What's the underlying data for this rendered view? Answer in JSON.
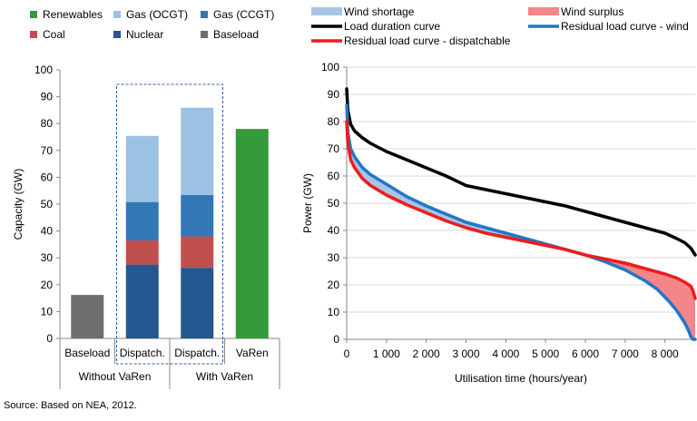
{
  "chart_data": [
    {
      "type": "bar",
      "stacked": true,
      "ylabel": "Capacity (GW)",
      "ylim": [
        0,
        100
      ],
      "yticks": [
        0,
        10,
        20,
        30,
        40,
        50,
        60,
        70,
        80,
        90,
        100
      ],
      "categories": [
        "Baseload",
        "Dispatch.",
        "Dispatch.",
        "VaRen"
      ],
      "groups": [
        {
          "label": "Without VaRen",
          "categories": [
            0,
            1
          ]
        },
        {
          "label": "With VaRen",
          "categories": [
            2,
            3
          ]
        }
      ],
      "series": [
        {
          "name": "Baseload",
          "color": "#6f6f6f",
          "values": [
            16.2,
            0,
            0,
            0
          ]
        },
        {
          "name": "Nuclear",
          "color": "#24568f",
          "values": [
            0,
            27.5,
            26.3,
            0
          ]
        },
        {
          "name": "Coal",
          "color": "#c0504d",
          "values": [
            0,
            9,
            11.7,
            0
          ]
        },
        {
          "name": "Gas (CCGT)",
          "color": "#3178b5",
          "values": [
            0,
            14.3,
            15.4,
            0
          ]
        },
        {
          "name": "Gas (OCGT)",
          "color": "#9cc2e3",
          "values": [
            0,
            24.6,
            32.5,
            0
          ]
        },
        {
          "name": "Renewables",
          "color": "#349a3a",
          "values": [
            0,
            0,
            0,
            78
          ]
        }
      ],
      "legend": {
        "rows": [
          [
            "Renewables",
            "Gas (OCGT)",
            "Gas (CCGT)"
          ],
          [
            "Coal",
            "Nuclear",
            "Baseload"
          ]
        ]
      },
      "highlight_box": {
        "categories": [
          1,
          2
        ],
        "style": "dashed",
        "color": "#2e5fa8"
      }
    },
    {
      "type": "line",
      "xlabel": "Utilisation time (hours/year)",
      "ylabel": "Power (GW)",
      "xlim": [
        0,
        8760
      ],
      "ylim": [
        0,
        100
      ],
      "xticks": [
        0,
        1000,
        2000,
        3000,
        4000,
        5000,
        6000,
        7000,
        8000
      ],
      "xtick_labels": [
        "0",
        "1 000",
        "2 000",
        "3 000",
        "4 000",
        "5 000",
        "6 000",
        "7 000",
        "8 000"
      ],
      "yticks": [
        0,
        10,
        20,
        30,
        40,
        50,
        60,
        70,
        80,
        90,
        100
      ],
      "series": [
        {
          "name": "Load duration curve",
          "color": "#000000",
          "x": [
            0,
            30,
            100,
            200,
            400,
            600,
            1000,
            1500,
            2000,
            2500,
            3000,
            3500,
            4000,
            4500,
            5000,
            5500,
            6000,
            6500,
            7000,
            7500,
            8000,
            8300,
            8500,
            8650,
            8760
          ],
          "y": [
            92,
            84,
            79,
            76.5,
            74,
            72,
            69,
            66,
            63,
            60,
            56.5,
            55,
            53.5,
            52,
            50.5,
            49,
            47,
            45,
            43,
            41,
            39,
            37,
            35.5,
            33.5,
            31
          ]
        },
        {
          "name": "Residual load curve - wind",
          "color": "#1f77c9",
          "x": [
            0,
            30,
            100,
            200,
            400,
            600,
            1000,
            1500,
            2000,
            2500,
            3000,
            3500,
            4000,
            4500,
            5000,
            5500,
            6000,
            6500,
            7000,
            7500,
            7800,
            8100,
            8300,
            8500,
            8600,
            8650,
            8700,
            8760
          ],
          "y": [
            86,
            76,
            70,
            67,
            63,
            60.5,
            57,
            52.5,
            49,
            46,
            43,
            41,
            39,
            37,
            35,
            33,
            31,
            28.5,
            25.5,
            21.5,
            18.5,
            14,
            10.5,
            6,
            3,
            1,
            0,
            0
          ]
        },
        {
          "name": "Residual load curve - dispatchable",
          "color": "#ee1c1c",
          "x": [
            0,
            30,
            100,
            200,
            400,
            600,
            1000,
            1500,
            2000,
            2500,
            3000,
            3500,
            4000,
            4500,
            5000,
            5500,
            6000,
            6500,
            7000,
            7500,
            8000,
            8300,
            8500,
            8650,
            8700,
            8760
          ],
          "y": [
            80,
            72,
            66,
            63,
            59,
            56.5,
            53,
            49.5,
            46.5,
            43.5,
            41,
            39,
            37.5,
            36,
            34.5,
            33,
            31,
            29.5,
            28,
            26,
            24,
            22.5,
            21,
            19.5,
            18,
            15
          ]
        }
      ],
      "bands": [
        {
          "name": "Wind shortage",
          "color": "#a9c4e6",
          "between": [
            "Residual load curve - dispatchable",
            "Residual load curve - wind"
          ],
          "where": "wind_above"
        },
        {
          "name": "Wind surplus",
          "color": "#f4868a",
          "between": [
            "Residual load curve - wind",
            "Residual load curve - dispatchable"
          ],
          "where": "wind_below"
        }
      ],
      "legend": {
        "rows": [
          [
            "Wind shortage",
            "Wind surplus"
          ],
          [
            "Load duration curve",
            "Residual load curve - wind"
          ],
          [
            "Residual load curve - dispatchable"
          ]
        ]
      }
    }
  ],
  "source": "Source: Based on NEA, 2012."
}
